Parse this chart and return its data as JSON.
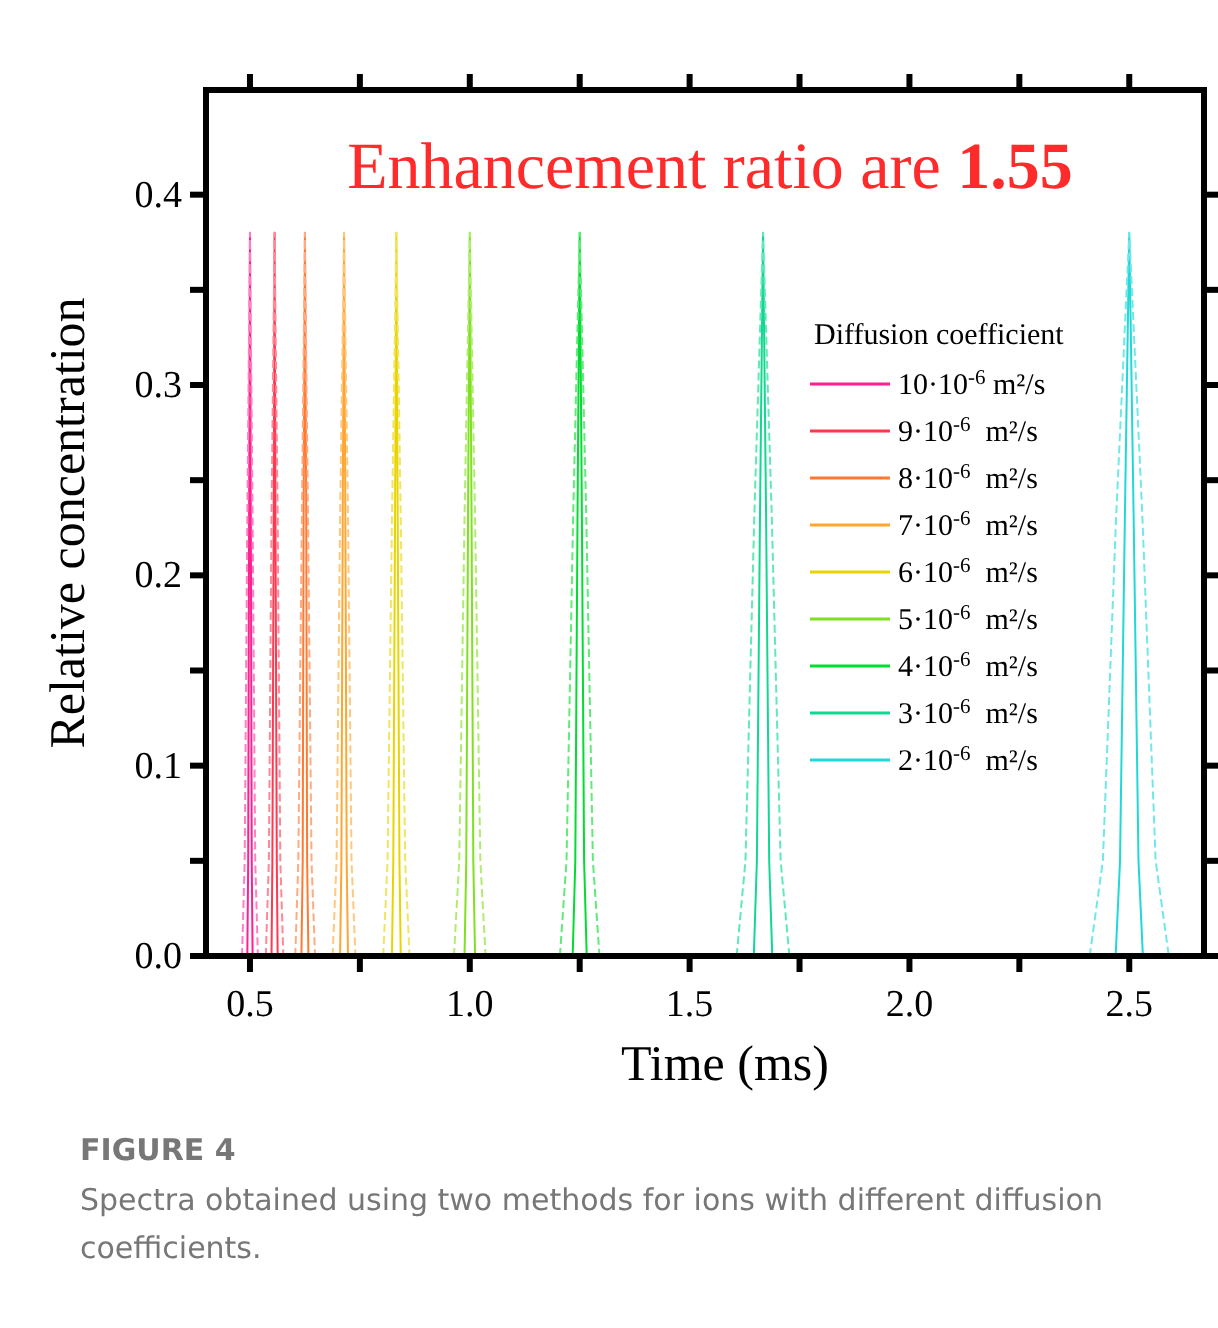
{
  "chart_data": {
    "type": "line",
    "xlabel": "Time (ms)",
    "ylabel": "Relative concentration",
    "legend_title": "Diffusion coefficient",
    "legend": "right",
    "grid": false,
    "xlim": [
      0.4,
      2.67
    ],
    "ylim": [
      0,
      0.455
    ],
    "xticks": [
      {
        "value": 0.5,
        "label": "0.5"
      },
      {
        "value": 0.75,
        "label": null
      },
      {
        "value": 1,
        "label": "1.0"
      },
      {
        "value": 1.25,
        "label": null
      },
      {
        "value": 1.5,
        "label": "1.5"
      },
      {
        "value": 1.75,
        "label": null
      },
      {
        "value": 2,
        "label": "2.0"
      },
      {
        "value": 2.25,
        "label": null
      },
      {
        "value": 2.5,
        "label": "2.5"
      }
    ],
    "yticks": [
      {
        "value": 0,
        "label": "0.0"
      },
      {
        "value": 0.05,
        "label": null
      },
      {
        "value": 0.1,
        "label": "0.1"
      },
      {
        "value": 0.15,
        "label": null
      },
      {
        "value": 0.2,
        "label": "0.2"
      },
      {
        "value": 0.25,
        "label": null
      },
      {
        "value": 0.3,
        "label": "0.3"
      },
      {
        "value": 0.35,
        "label": null
      },
      {
        "value": 0.4,
        "label": "0.4"
      }
    ],
    "annotations": [
      "Enhancement ratio are 1.55",
      "FIGURE 4",
      "Spectra obtained using two methods for ions with different diffusion coefficients."
    ],
    "series": [
      {
        "name": "10·10$^{-6}$ m²/s",
        "color": "#ff1f8f",
        "line_style": "solid",
        "x": [
          0.494,
          0.496,
          0.498,
          0.5,
          0.502,
          0.504,
          0.506
        ],
        "values": [
          0,
          0.05,
          0.23,
          0.38,
          0.23,
          0.05,
          0
        ]
      },
      {
        "name": "9·10$^{-6}$  m²/s",
        "color": "#ff3850",
        "line_style": "solid",
        "x": [
          0.549,
          0.551,
          0.554,
          0.556,
          0.558,
          0.561,
          0.563
        ],
        "values": [
          0,
          0.05,
          0.23,
          0.38,
          0.23,
          0.05,
          0
        ]
      },
      {
        "name": "8·10$^{-6}$  m²/s",
        "color": "#ff7a30",
        "line_style": "solid",
        "x": [
          0.617,
          0.62,
          0.622,
          0.625,
          0.628,
          0.63,
          0.633
        ],
        "values": [
          0,
          0.05,
          0.23,
          0.38,
          0.23,
          0.05,
          0
        ]
      },
      {
        "name": "7·10$^{-6}$  m²/s",
        "color": "#ffa530",
        "line_style": "solid",
        "x": [
          0.705,
          0.708,
          0.711,
          0.714,
          0.717,
          0.72,
          0.723
        ],
        "values": [
          0,
          0.05,
          0.23,
          0.38,
          0.23,
          0.05,
          0
        ]
      },
      {
        "name": "6·10$^{-6}$  m²/s",
        "color": "#e8d400",
        "line_style": "solid",
        "x": [
          0.823,
          0.826,
          0.83,
          0.833,
          0.836,
          0.84,
          0.843
        ],
        "values": [
          0,
          0.05,
          0.23,
          0.38,
          0.23,
          0.05,
          0
        ]
      },
      {
        "name": "5·10$^{-6}$  m²/s",
        "color": "#7fe020",
        "line_style": "solid",
        "x": [
          0.988,
          0.992,
          0.996,
          1,
          1.004,
          1.008,
          1.012
        ],
        "values": [
          0,
          0.05,
          0.23,
          0.38,
          0.23,
          0.05,
          0
        ]
      },
      {
        "name": "4·10$^{-6}$  m²/s",
        "color": "#00dd30",
        "line_style": "solid",
        "x": [
          1.234,
          1.24,
          1.245,
          1.25,
          1.255,
          1.26,
          1.266
        ],
        "values": [
          0,
          0.05,
          0.23,
          0.38,
          0.23,
          0.05,
          0
        ]
      },
      {
        "name": "3·10$^{-6}$  m²/s",
        "color": "#10d890",
        "line_style": "solid",
        "x": [
          1.646,
          1.653,
          1.66,
          1.667,
          1.674,
          1.681,
          1.688
        ],
        "values": [
          0,
          0.05,
          0.23,
          0.38,
          0.23,
          0.05,
          0
        ]
      },
      {
        "name": "2·10$^{-6}$  m²/s",
        "color": "#20d8d8",
        "line_style": "solid",
        "x": [
          2.469,
          2.479,
          2.49,
          2.5,
          2.51,
          2.521,
          2.531
        ],
        "values": [
          0,
          0.05,
          0.23,
          0.38,
          0.23,
          0.05,
          0
        ]
      },
      {
        "color": "#ff80c0",
        "line_style": "dashed",
        "x": [
          0.482,
          0.488,
          0.494,
          0.5,
          0.506,
          0.512,
          0.518
        ],
        "values": [
          0,
          0.05,
          0.23,
          0.38,
          0.23,
          0.05,
          0
        ]
      },
      {
        "color": "#ff8898",
        "line_style": "dashed",
        "x": [
          0.536,
          0.543,
          0.549,
          0.556,
          0.563,
          0.569,
          0.576
        ],
        "values": [
          0,
          0.05,
          0.23,
          0.38,
          0.23,
          0.05,
          0
        ]
      },
      {
        "color": "#ffaa80",
        "line_style": "dashed",
        "x": [
          0.603,
          0.61,
          0.618,
          0.625,
          0.632,
          0.64,
          0.648
        ],
        "values": [
          0,
          0.05,
          0.23,
          0.38,
          0.23,
          0.05,
          0
        ]
      },
      {
        "color": "#ffc880",
        "line_style": "dashed",
        "x": [
          0.688,
          0.697,
          0.705,
          0.714,
          0.723,
          0.731,
          0.74
        ],
        "values": [
          0,
          0.05,
          0.23,
          0.38,
          0.23,
          0.05,
          0
        ]
      },
      {
        "color": "#f0e460",
        "line_style": "dashed",
        "x": [
          0.803,
          0.813,
          0.823,
          0.833,
          0.843,
          0.853,
          0.863
        ],
        "values": [
          0,
          0.05,
          0.23,
          0.38,
          0.23,
          0.05,
          0
        ]
      },
      {
        "color": "#b0ec70",
        "line_style": "dashed",
        "x": [
          0.964,
          0.976,
          0.988,
          1,
          1.012,
          1.024,
          1.036
        ],
        "values": [
          0,
          0.05,
          0.23,
          0.38,
          0.23,
          0.05,
          0
        ]
      },
      {
        "color": "#60ea78",
        "line_style": "dashed",
        "x": [
          1.205,
          1.22,
          1.235,
          1.25,
          1.265,
          1.28,
          1.295
        ],
        "values": [
          0,
          0.05,
          0.23,
          0.38,
          0.23,
          0.05,
          0
        ]
      },
      {
        "color": "#60e8b8",
        "line_style": "dashed",
        "x": [
          1.607,
          1.627,
          1.647,
          1.667,
          1.687,
          1.707,
          1.727
        ],
        "values": [
          0,
          0.05,
          0.23,
          0.38,
          0.23,
          0.05,
          0
        ]
      },
      {
        "color": "#70e8e8",
        "line_style": "dashed",
        "x": [
          2.41,
          2.44,
          2.47,
          2.5,
          2.53,
          2.56,
          2.59
        ],
        "values": [
          0,
          0.05,
          0.23,
          0.38,
          0.23,
          0.05,
          0
        ]
      }
    ]
  }
}
